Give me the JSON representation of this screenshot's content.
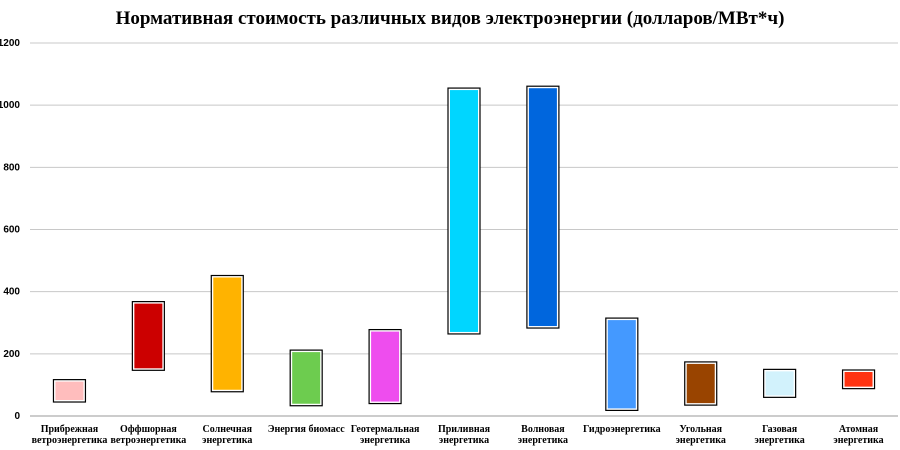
{
  "chart_data": {
    "type": "bar",
    "subtype": "floating-range",
    "title": "Нормативная стоимость различных видов электроэнергии (долларов/МВт*ч)",
    "xlabel": "",
    "ylabel": "",
    "ylim": [
      0,
      1200
    ],
    "yticks": [
      0,
      200,
      400,
      600,
      800,
      1000,
      1200
    ],
    "grid": true,
    "legend": "none",
    "categories": [
      [
        "Прибрежная",
        "ветроэнергетика"
      ],
      [
        "Оффшорная",
        "ветроэнергетика"
      ],
      [
        "Солнечная",
        "энергетика"
      ],
      [
        "Энергия биомасс"
      ],
      [
        "Геотермальная",
        "энергетика"
      ],
      [
        "Приливная",
        "энергетика"
      ],
      [
        "Волновая",
        "энергетика"
      ],
      [
        "Гидроэнергетика"
      ],
      [
        "Угольная",
        "энергетика"
      ],
      [
        "Газовая",
        "энергетика"
      ],
      [
        "Атомная",
        "энергетика"
      ]
    ],
    "ranges": [
      [
        45,
        117
      ],
      [
        147,
        368
      ],
      [
        78,
        452
      ],
      [
        33,
        212
      ],
      [
        40,
        278
      ],
      [
        264,
        1055
      ],
      [
        283,
        1061
      ],
      [
        18,
        315
      ],
      [
        35,
        174
      ],
      [
        60,
        150
      ],
      [
        88,
        148
      ]
    ],
    "colors": [
      "#ffbdbd",
      "#cc0000",
      "#ffb300",
      "#6dcc4f",
      "#ee4dee",
      "#00d6ff",
      "#0066dd",
      "#4499ff",
      "#994400",
      "#d2f2fc",
      "#ff3311"
    ]
  }
}
